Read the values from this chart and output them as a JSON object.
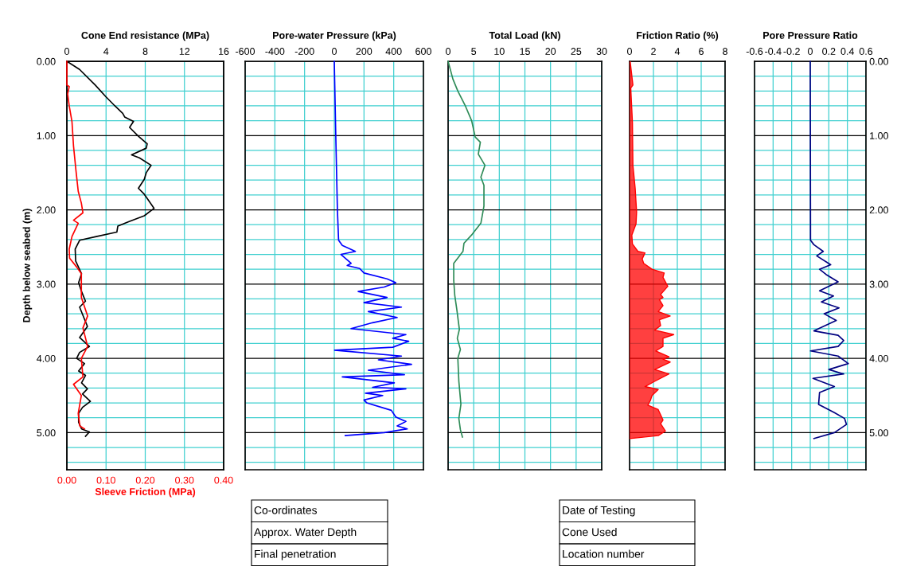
{
  "chart_data": [
    {
      "type": "line",
      "xlabel": "Cone End resistance (MPa)",
      "x2label": "Sleeve Friction (MPa)",
      "ylabel": "Depth below seabed (m)",
      "xlim": [
        0,
        16
      ],
      "xticks": [
        0,
        4,
        8,
        12,
        16
      ],
      "x2lim": [
        0,
        0.4
      ],
      "x2ticks": [
        {
          "value": 0,
          "label": "0.00"
        },
        {
          "value": 0.1,
          "label": "0.10"
        },
        {
          "value": 0.2,
          "label": "0.20"
        },
        {
          "value": 0.3,
          "label": "0.30"
        },
        {
          "value": 0.4,
          "label": "0.40"
        }
      ],
      "ylim": [
        5.5,
        0
      ],
      "yticks": [
        {
          "value": 0,
          "label": "0.00"
        },
        {
          "value": 0.2,
          "label": null
        },
        {
          "value": 0.4,
          "label": null
        },
        {
          "value": 0.6,
          "label": null
        },
        {
          "value": 0.8,
          "label": null
        },
        {
          "value": 1,
          "label": "1.00"
        },
        {
          "value": 1.2,
          "label": null
        },
        {
          "value": 1.4,
          "label": null
        },
        {
          "value": 1.6,
          "label": null
        },
        {
          "value": 1.8,
          "label": null
        },
        {
          "value": 2,
          "label": "2.00"
        },
        {
          "value": 2.2,
          "label": null
        },
        {
          "value": 2.4,
          "label": null
        },
        {
          "value": 2.6,
          "label": null
        },
        {
          "value": 2.8,
          "label": null
        },
        {
          "value": 3,
          "label": "3.00"
        },
        {
          "value": 3.2,
          "label": null
        },
        {
          "value": 3.4,
          "label": null
        },
        {
          "value": 3.6,
          "label": null
        },
        {
          "value": 3.8,
          "label": null
        },
        {
          "value": 4,
          "label": "4.00"
        },
        {
          "value": 4.2,
          "label": null
        },
        {
          "value": 4.4,
          "label": null
        },
        {
          "value": 4.6,
          "label": null
        },
        {
          "value": 4.8,
          "label": null
        },
        {
          "value": 5,
          "label": "5.00"
        },
        {
          "value": 5.2,
          "label": null
        },
        {
          "value": 5.4,
          "label": null
        }
      ],
      "grid": true,
      "series": [
        {
          "color": "#000000",
          "x": [
            0,
            1.3,
            2.9,
            4.0,
            4.9,
            5.7,
            5.9,
            6.8,
            6.4,
            7.3,
            8.2,
            8.1,
            6.6,
            7.4,
            8.6,
            8.1,
            7.9,
            7.3,
            7.9,
            8.9,
            7.9,
            6.3,
            5.2,
            5.1,
            3.0,
            1.3,
            0.85,
            0.9,
            1.5,
            1.2,
            1.5,
            1.9,
            1.3,
            2.1,
            1.3,
            2.3,
            1.3,
            1.0,
            1.8,
            1.2,
            1.9,
            1.5,
            2.1,
            1.6,
            2.4,
            1.6,
            1.2,
            1.2,
            1.5,
            2.3,
            1.9
          ],
          "values": [
            0,
            0.11,
            0.32,
            0.48,
            0.6,
            0.7,
            0.75,
            0.81,
            0.89,
            1.01,
            1.11,
            1.17,
            1.26,
            1.3,
            1.4,
            1.5,
            1.59,
            1.71,
            1.79,
            1.98,
            2.08,
            2.16,
            2.22,
            2.3,
            2.36,
            2.41,
            2.53,
            2.69,
            2.86,
            2.98,
            3.1,
            3.23,
            3.31,
            3.57,
            3.72,
            3.84,
            3.92,
            4.0,
            4.07,
            4.17,
            4.23,
            4.33,
            4.41,
            4.48,
            4.58,
            4.66,
            4.74,
            4.86,
            4.95,
            4.99,
            5.05
          ]
        },
        {
          "color": "#ff0000",
          "axis": "x2",
          "x": [
            0,
            0,
            0.006,
            0.002,
            0.006,
            0.013,
            0.017,
            0.023,
            0.029,
            0.037,
            0.041,
            0.017,
            0.029,
            0.013,
            0.006,
            0.007,
            0.025,
            0.037,
            0.037,
            0.053,
            0.041,
            0.053,
            0.037,
            0.041,
            0.017,
            0.037,
            0.029,
            0.033,
            0.045
          ],
          "values": [
            0,
            0.32,
            0.34,
            0.44,
            0.6,
            0.81,
            1.14,
            1.46,
            1.75,
            1.91,
            2.04,
            2.14,
            2.18,
            2.36,
            2.53,
            2.65,
            2.77,
            2.86,
            3.18,
            3.43,
            3.59,
            3.84,
            4.0,
            4.25,
            4.35,
            4.5,
            4.74,
            4.91,
            4.95
          ]
        }
      ]
    },
    {
      "type": "line",
      "xlabel": "Pore-water Pressure (kPa)",
      "xlim": [
        -600,
        600
      ],
      "xticks": [
        -600,
        -400,
        -200,
        0,
        200,
        400,
        600
      ],
      "ylim": [
        5.5,
        0
      ],
      "tick_labels": "x",
      "grid": true,
      "yticks": [
        {
          "value": 0,
          "label": null
        },
        {
          "value": 0.2,
          "label": null
        },
        {
          "value": 0.4,
          "label": null
        },
        {
          "value": 0.6,
          "label": null
        },
        {
          "value": 0.8,
          "label": null
        },
        {
          "value": 1,
          "label": null
        },
        {
          "value": 1.2,
          "label": null
        },
        {
          "value": 1.4,
          "label": null
        },
        {
          "value": 1.6,
          "label": null
        },
        {
          "value": 1.8,
          "label": null
        },
        {
          "value": 2,
          "label": null
        },
        {
          "value": 2.2,
          "label": null
        },
        {
          "value": 2.4,
          "label": null
        },
        {
          "value": 2.6,
          "label": null
        },
        {
          "value": 2.8,
          "label": null
        },
        {
          "value": 3,
          "label": null
        },
        {
          "value": 3.2,
          "label": null
        },
        {
          "value": 3.4,
          "label": null
        },
        {
          "value": 3.6,
          "label": null
        },
        {
          "value": 3.8,
          "label": null
        },
        {
          "value": 4,
          "label": null
        },
        {
          "value": 4.2,
          "label": null
        },
        {
          "value": 4.4,
          "label": null
        },
        {
          "value": 4.6,
          "label": null
        },
        {
          "value": 4.8,
          "label": null
        },
        {
          "value": 5,
          "label": null
        },
        {
          "value": 5.2,
          "label": null
        },
        {
          "value": 5.4,
          "label": null
        }
      ],
      "series": [
        {
          "color": "#0000ff",
          "x": [
            0,
            10,
            21,
            29,
            54,
            142,
            45,
            113,
            87,
            171,
            200,
            355,
            414,
            336,
            161,
            355,
            200,
            452,
            229,
            423,
            258,
            113,
            482,
            394,
            501,
            394,
            2,
            452,
            297,
            520,
            229,
            472,
            54,
            404,
            258,
            482,
            210,
            326,
            200,
            219,
            384,
            414,
            482,
            423,
            491,
            336,
            74
          ],
          "values": [
            0,
            1.0,
            2.0,
            2.41,
            2.48,
            2.56,
            2.6,
            2.72,
            2.75,
            2.79,
            2.85,
            2.93,
            2.98,
            3.04,
            3.1,
            3.18,
            3.25,
            3.31,
            3.37,
            3.45,
            3.52,
            3.6,
            3.68,
            3.73,
            3.77,
            3.85,
            3.89,
            3.97,
            4.02,
            4.08,
            4.16,
            4.22,
            4.25,
            4.33,
            4.39,
            4.41,
            4.47,
            4.5,
            4.56,
            4.6,
            4.7,
            4.79,
            4.85,
            4.91,
            4.95,
            5.0,
            5.04
          ]
        }
      ]
    },
    {
      "type": "line",
      "xlabel": "Total Load (kN)",
      "xlim": [
        0,
        30
      ],
      "xticks": [
        0,
        5,
        10,
        15,
        20,
        25,
        30
      ],
      "ylim": [
        5.5,
        0
      ],
      "tick_labels": "x",
      "grid": true,
      "yticks": [
        {
          "value": 0,
          "label": null
        },
        {
          "value": 0.2,
          "label": null
        },
        {
          "value": 0.4,
          "label": null
        },
        {
          "value": 0.6,
          "label": null
        },
        {
          "value": 0.8,
          "label": null
        },
        {
          "value": 1,
          "label": null
        },
        {
          "value": 1.2,
          "label": null
        },
        {
          "value": 1.4,
          "label": null
        },
        {
          "value": 1.6,
          "label": null
        },
        {
          "value": 1.8,
          "label": null
        },
        {
          "value": 2,
          "label": null
        },
        {
          "value": 2.2,
          "label": null
        },
        {
          "value": 2.4,
          "label": null
        },
        {
          "value": 2.6,
          "label": null
        },
        {
          "value": 2.8,
          "label": null
        },
        {
          "value": 3,
          "label": null
        },
        {
          "value": 3.2,
          "label": null
        },
        {
          "value": 3.4,
          "label": null
        },
        {
          "value": 3.6,
          "label": null
        },
        {
          "value": 3.8,
          "label": null
        },
        {
          "value": 4,
          "label": null
        },
        {
          "value": 4.2,
          "label": null
        },
        {
          "value": 4.4,
          "label": null
        },
        {
          "value": 4.6,
          "label": null
        },
        {
          "value": 4.8,
          "label": null
        },
        {
          "value": 5,
          "label": null
        },
        {
          "value": 5.2,
          "label": null
        },
        {
          "value": 5.4,
          "label": null
        }
      ],
      "series": [
        {
          "color": "#2e8b57",
          "x": [
            0,
            0.94,
            1.9,
            3.3,
            4.6,
            5.3,
            6.3,
            5.9,
            7.2,
            6.4,
            7.0,
            7.0,
            6.4,
            4.7,
            3.1,
            2.9,
            1.1,
            1.1,
            1.3,
            1.7,
            2.2,
            1.8,
            2.4,
            1.9,
            2.1,
            2.5,
            2.1,
            2.4,
            2.8
          ],
          "values": [
            0,
            0.24,
            0.4,
            0.59,
            0.8,
            1.02,
            1.09,
            1.25,
            1.4,
            1.56,
            1.67,
            1.95,
            2.18,
            2.33,
            2.45,
            2.56,
            2.72,
            2.95,
            3.15,
            3.34,
            3.61,
            3.73,
            3.88,
            4.0,
            4.31,
            4.62,
            4.81,
            4.96,
            5.06
          ]
        }
      ]
    },
    {
      "type": "area",
      "xlabel": "Friction Ratio (%)",
      "xlim": [
        0,
        8
      ],
      "xticks": [
        0,
        2,
        4,
        6,
        8
      ],
      "ylim": [
        5.5,
        0
      ],
      "tick_labels": "x",
      "grid": true,
      "yticks": [
        {
          "value": 0,
          "label": null
        },
        {
          "value": 0.2,
          "label": null
        },
        {
          "value": 0.4,
          "label": null
        },
        {
          "value": 0.6,
          "label": null
        },
        {
          "value": 0.8,
          "label": null
        },
        {
          "value": 1,
          "label": null
        },
        {
          "value": 1.2,
          "label": null
        },
        {
          "value": 1.4,
          "label": null
        },
        {
          "value": 1.6,
          "label": null
        },
        {
          "value": 1.8,
          "label": null
        },
        {
          "value": 2,
          "label": null
        },
        {
          "value": 2.2,
          "label": null
        },
        {
          "value": 2.4,
          "label": null
        },
        {
          "value": 2.6,
          "label": null
        },
        {
          "value": 2.8,
          "label": null
        },
        {
          "value": 3,
          "label": null
        },
        {
          "value": 3.2,
          "label": null
        },
        {
          "value": 3.4,
          "label": null
        },
        {
          "value": 3.6,
          "label": null
        },
        {
          "value": 3.8,
          "label": null
        },
        {
          "value": 4,
          "label": null
        },
        {
          "value": 4.2,
          "label": null
        },
        {
          "value": 4.4,
          "label": null
        },
        {
          "value": 4.6,
          "label": null
        },
        {
          "value": 4.8,
          "label": null
        },
        {
          "value": 5,
          "label": null
        },
        {
          "value": 5.2,
          "label": null
        },
        {
          "value": 5.4,
          "label": null
        }
      ],
      "series": [
        {
          "color": "#ff0000",
          "x": [
            0.05,
            0.28,
            0.1,
            0.24,
            0.28,
            0.47,
            0.59,
            0.54,
            0.19,
            0.24,
            0.7,
            1.29,
            1.06,
            1.18,
            1.88,
            2.9,
            2.8,
            3.2,
            2.6,
            2.8,
            2.5,
            2.8,
            2.4,
            3.4,
            2.5,
            2.6,
            2.1,
            3.7,
            2.8,
            2.8,
            2.2,
            3.3,
            2.8,
            3.4,
            2.1,
            3.3,
            2.1,
            1.29,
            2.4,
            1.88,
            1.76,
            1.53,
            2.4,
            2.8,
            2.6,
            3.0,
            2.4,
            0.05
          ],
          "values": [
            0,
            0.32,
            0.36,
            0.82,
            1.4,
            1.71,
            2.03,
            2.19,
            2.34,
            2.46,
            2.56,
            2.58,
            2.66,
            2.72,
            2.8,
            2.85,
            2.91,
            3.03,
            3.14,
            3.18,
            3.21,
            3.29,
            3.37,
            3.43,
            3.48,
            3.56,
            3.62,
            3.68,
            3.73,
            3.84,
            3.9,
            3.98,
            4.01,
            4.05,
            4.15,
            4.21,
            4.31,
            4.38,
            4.42,
            4.5,
            4.56,
            4.63,
            4.69,
            4.83,
            4.88,
            4.98,
            5.04,
            5.08
          ]
        }
      ]
    },
    {
      "type": "line",
      "xlabel": "Pore Pressure Ratio",
      "xlim": [
        -0.6,
        0.6
      ],
      "xticks": [
        -0.6,
        -0.4,
        -0.2,
        0,
        0.2,
        0.4,
        0.6
      ],
      "ylim": [
        5.5,
        0
      ],
      "grid": true,
      "yticks": [
        {
          "value": 0,
          "label": "0.00"
        },
        {
          "value": 0.2,
          "label": null
        },
        {
          "value": 0.4,
          "label": null
        },
        {
          "value": 0.6,
          "label": null
        },
        {
          "value": 0.8,
          "label": null
        },
        {
          "value": 1,
          "label": "1.00"
        },
        {
          "value": 1.2,
          "label": null
        },
        {
          "value": 1.4,
          "label": null
        },
        {
          "value": 1.6,
          "label": null
        },
        {
          "value": 1.8,
          "label": null
        },
        {
          "value": 2,
          "label": "2.00"
        },
        {
          "value": 2.2,
          "label": null
        },
        {
          "value": 2.4,
          "label": null
        },
        {
          "value": 2.6,
          "label": null
        },
        {
          "value": 2.8,
          "label": null
        },
        {
          "value": 3,
          "label": "3.00"
        },
        {
          "value": 3.2,
          "label": null
        },
        {
          "value": 3.4,
          "label": null
        },
        {
          "value": 3.6,
          "label": null
        },
        {
          "value": 3.8,
          "label": null
        },
        {
          "value": 4,
          "label": "4.00"
        },
        {
          "value": 4.2,
          "label": null
        },
        {
          "value": 4.4,
          "label": null
        },
        {
          "value": 4.6,
          "label": null
        },
        {
          "value": 4.8,
          "label": null
        },
        {
          "value": 5,
          "label": "5.00"
        },
        {
          "value": 5.2,
          "label": null
        },
        {
          "value": 5.4,
          "label": null
        }
      ],
      "series": [
        {
          "color": "#000080",
          "x": [
            0,
            0.003,
            0.04,
            0.14,
            0.07,
            0.22,
            0.1,
            0.17,
            0.3,
            0.1,
            0.25,
            0.12,
            0.31,
            0.15,
            0.28,
            0.04,
            0.3,
            0.36,
            0.3,
            0.003,
            0.3,
            0.41,
            0.2,
            0.36,
            0.03,
            0.26,
            0.1,
            0.09,
            0.26,
            0.37,
            0.39,
            0.26,
            0.04
          ],
          "values": [
            0,
            2.41,
            2.47,
            2.56,
            2.62,
            2.74,
            2.8,
            2.87,
            2.97,
            3.09,
            3.16,
            3.24,
            3.32,
            3.4,
            3.49,
            3.63,
            3.69,
            3.76,
            3.84,
            3.9,
            3.97,
            4.07,
            4.15,
            4.21,
            4.27,
            4.38,
            4.46,
            4.62,
            4.73,
            4.81,
            4.89,
            5.0,
            5.08
          ]
        }
      ]
    },
    {
      "type": "other",
      "annotations": [
        "Co-ordinates",
        "Approx. Water Depth",
        "Final penetration",
        "Date of Testing",
        "Cone Used",
        "Location number"
      ]
    }
  ]
}
